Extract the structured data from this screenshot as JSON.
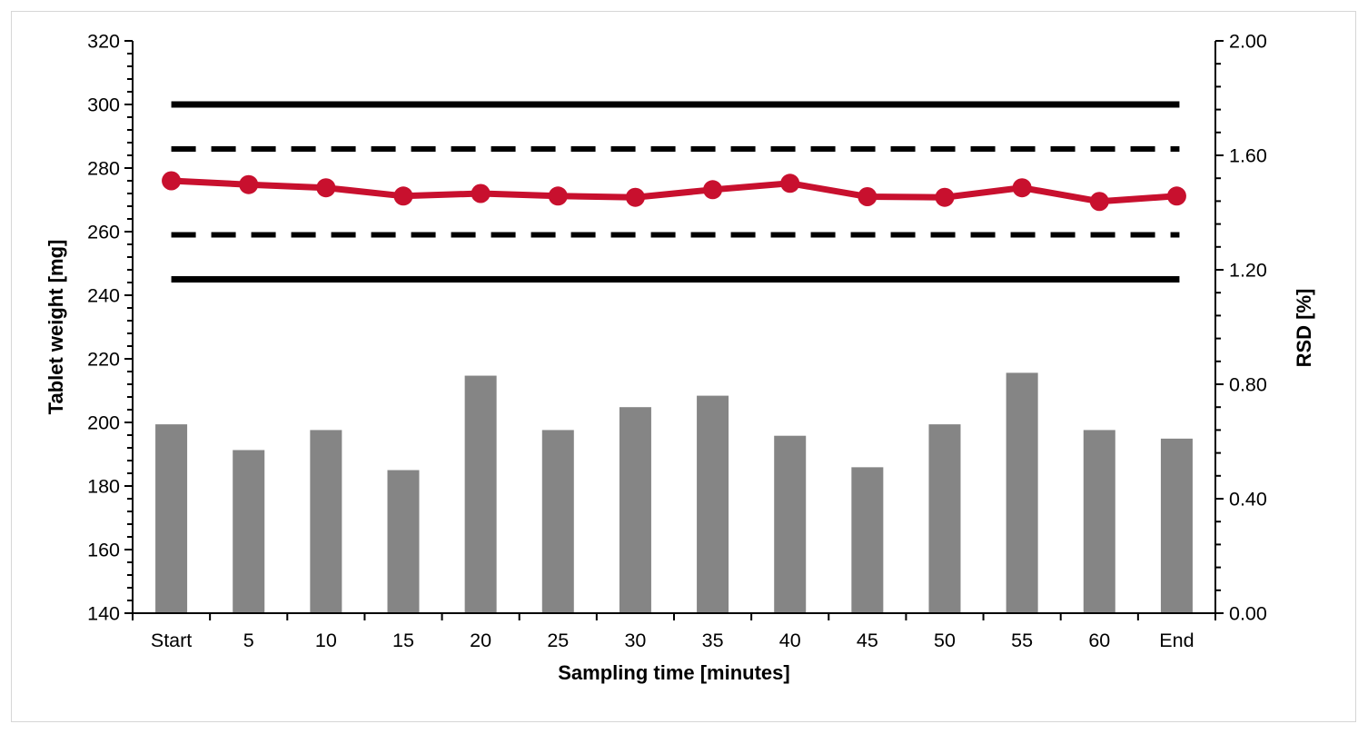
{
  "chart": {
    "left_axis_title": "Tablet weight [mg]",
    "right_axis_title": "RSD [%]",
    "x_axis_title": "Sampling time [minutes]"
  },
  "chart_data": {
    "type": "combo",
    "categories": [
      "Start",
      "5",
      "10",
      "15",
      "20",
      "25",
      "30",
      "35",
      "40",
      "45",
      "50",
      "55",
      "60",
      "End"
    ],
    "series": [
      {
        "name": "RSD",
        "type": "bar",
        "axis": "right",
        "values": [
          0.66,
          0.57,
          0.64,
          0.5,
          0.83,
          0.64,
          0.72,
          0.76,
          0.62,
          0.51,
          0.66,
          0.84,
          0.64,
          0.61
        ]
      },
      {
        "name": "Tablet weight",
        "type": "line",
        "axis": "left",
        "values": [
          276.0,
          274.8,
          273.8,
          271.2,
          272.0,
          271.2,
          270.8,
          273.2,
          275.2,
          271.0,
          270.8,
          273.8,
          269.5,
          271.2
        ]
      }
    ],
    "limit_lines": [
      {
        "value": 300,
        "style": "solid",
        "axis": "left",
        "label": "upper-action-limit"
      },
      {
        "value": 286,
        "style": "dashed",
        "axis": "left",
        "label": "upper-warning-limit"
      },
      {
        "value": 259,
        "style": "dashed",
        "axis": "left",
        "label": "lower-warning-limit"
      },
      {
        "value": 245,
        "style": "solid",
        "axis": "left",
        "label": "lower-action-limit"
      }
    ],
    "y_left": {
      "min": 140,
      "max": 320,
      "major": 20,
      "minor": 4,
      "decimals": 0
    },
    "y_right": {
      "min": 0,
      "max": 2,
      "major": 0.4,
      "minor": 0.08,
      "decimals": 2
    },
    "title": "",
    "xlabel": "Sampling time [minutes]",
    "ylabel_left": "Tablet weight [mg]",
    "ylabel_right": "RSD [%]",
    "grid": false,
    "legend": "none",
    "colors": {
      "bar": "#858585",
      "line": "#c8102e",
      "limits": "#000000",
      "axis": "#000000",
      "frame": "#d6d6d6"
    }
  }
}
